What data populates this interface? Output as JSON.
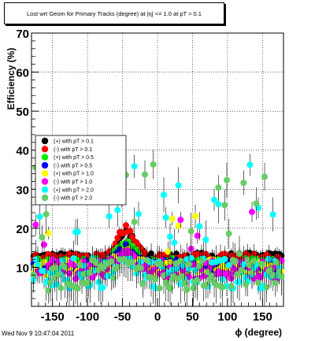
{
  "chart_data": {
    "type": "scatter",
    "title": "Lost wrt Geom for Primary Tracks (degree) at |η| <= 1.0 at pT > 0.1",
    "xlabel": "ϕ (degree)",
    "ylabel": "Efficiency (%)",
    "xlim": [
      -180,
      180
    ],
    "ylim": [
      0,
      70
    ],
    "x_ticks": [
      "-150",
      "-100",
      "-50",
      "0",
      "50",
      "100",
      "150"
    ],
    "y_ticks": [
      "10",
      "20",
      "30",
      "40",
      "50",
      "60",
      "70"
    ],
    "legend_position": "left-middle",
    "series": [
      {
        "name": "(+) with pT > 0.1",
        "color": "#000000",
        "base": 12.5,
        "spread": 1.2,
        "bump": 19,
        "error": 0.8
      },
      {
        "name": "(-) with pT > 0.1",
        "color": "#ff0000",
        "base": 12.5,
        "spread": 1.0,
        "bump": 20,
        "error": 0.8
      },
      {
        "name": "(+) with pT > 0.5",
        "color": "#00ee00",
        "base": 11.0,
        "spread": 1.5,
        "bump": 16,
        "error": 1.0
      },
      {
        "name": "(-) with pT > 0.5",
        "color": "#0000ff",
        "base": 10.5,
        "spread": 1.5,
        "bump": 15,
        "error": 1.0
      },
      {
        "name": "(+) with pT > 1.0",
        "color": "#ffff00",
        "base": 10.0,
        "spread": 2.0,
        "bump": 14,
        "error": 1.5
      },
      {
        "name": "(-) with pT > 1.0",
        "color": "#ff00ff",
        "base": 9.5,
        "spread": 2.5,
        "bump": 14,
        "error": 1.5
      },
      {
        "name": "(+) with pT > 2.0",
        "color": "#00ffff",
        "base": 8.5,
        "spread": 4.0,
        "bump": 12,
        "error": 2.5
      },
      {
        "name": "(-) with pT > 2.0",
        "color": "#66cc66",
        "base": 8.0,
        "spread": 4.0,
        "bump": 12,
        "error": 2.5
      }
    ]
  },
  "footer": {
    "timestamp": "Wed Nov  9 10:47:04 2011"
  }
}
